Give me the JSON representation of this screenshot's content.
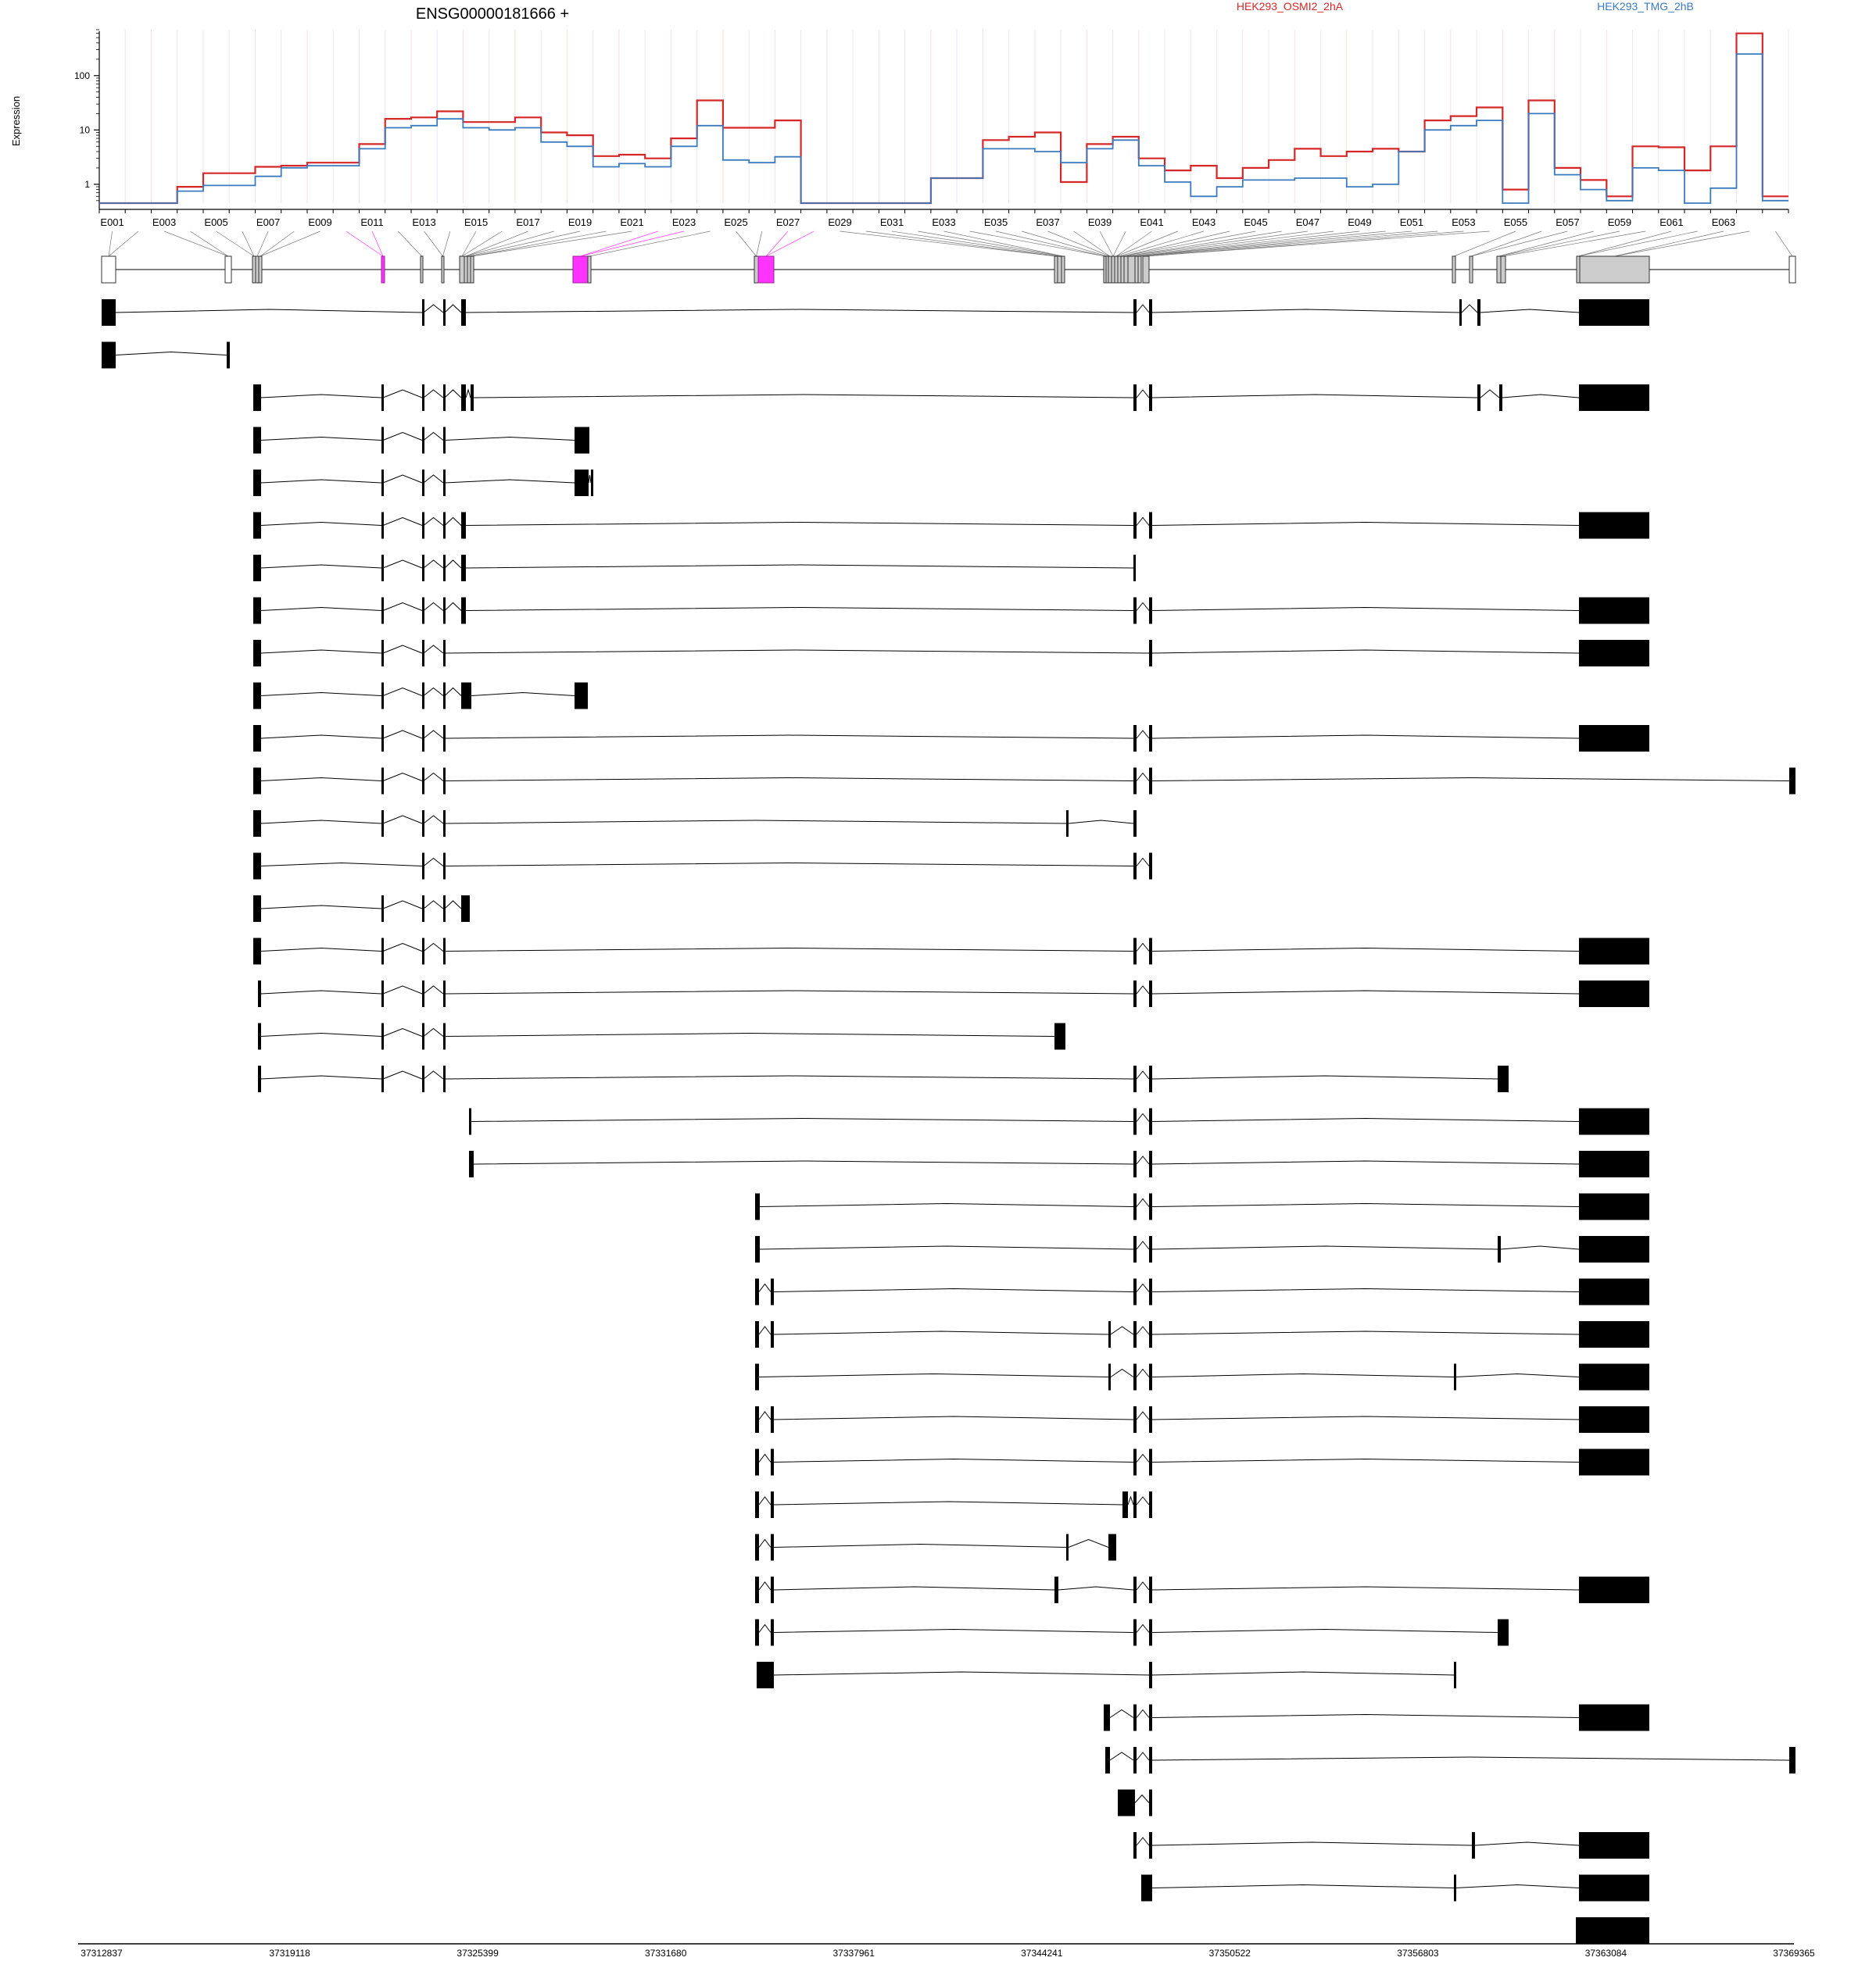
{
  "chart_data": {
    "type": "line",
    "title": "ENSG00000181666 +",
    "ylabel": "Expression",
    "y_scale": "log",
    "ylim": [
      0.45,
      700
    ],
    "y_ticks": [
      {
        "label": "1",
        "value": 1
      },
      {
        "label": "10",
        "value": 10
      },
      {
        "label": "100",
        "value": 100
      }
    ],
    "exon_labels": [
      "E001",
      "E003",
      "E005",
      "E007",
      "E009",
      "E011",
      "E013",
      "E015",
      "E017",
      "E019",
      "E021",
      "E023",
      "E025",
      "E027",
      "E029",
      "E031",
      "E033",
      "E035",
      "E037",
      "E039",
      "E041",
      "E043",
      "E045",
      "E047",
      "E049",
      "E051",
      "E053",
      "E055",
      "E057",
      "E059",
      "E061",
      "E063"
    ],
    "series": [
      {
        "name": "HEK293_OSMI2_2hA",
        "color": "#d62728",
        "values": [
          0.45,
          0.45,
          0.45,
          0.9,
          1.6,
          1.6,
          2.1,
          2.2,
          2.5,
          2.5,
          5.5,
          16,
          17,
          22,
          14,
          14,
          17,
          9,
          8,
          3.3,
          3.5,
          3,
          7,
          35,
          11,
          11,
          15,
          0.45,
          0.45,
          0.45,
          0.45,
          0.45,
          1.3,
          1.3,
          6.5,
          7.5,
          9,
          1.1,
          5.5,
          7.5,
          3,
          1.8,
          2.2,
          1.3,
          2,
          2.8,
          4.5,
          3.3,
          4,
          4.5,
          4,
          15,
          18,
          26,
          0.8,
          35,
          2,
          1.2,
          0.6,
          5,
          4.8,
          1.8,
          5,
          600,
          0.6
        ]
      },
      {
        "name": "HEK293_TMG_2hB",
        "color": "#3a7bbf",
        "values": [
          0.45,
          0.45,
          0.45,
          0.75,
          0.95,
          0.95,
          1.4,
          2,
          2.2,
          2.2,
          4.5,
          11,
          12,
          16,
          11,
          10,
          11,
          6,
          5,
          2.1,
          2.4,
          2.1,
          5,
          12,
          2.8,
          2.5,
          3.2,
          0.45,
          0.45,
          0.45,
          0.45,
          0.45,
          1.3,
          1.3,
          4.5,
          4.5,
          4,
          2.5,
          4.5,
          6.5,
          2.2,
          1.1,
          0.6,
          0.9,
          1.2,
          1.2,
          1.3,
          1.3,
          0.9,
          1,
          4,
          10,
          12,
          15,
          0.45,
          20,
          1.5,
          0.8,
          0.5,
          2,
          1.8,
          0.45,
          0.85,
          250,
          0.5
        ]
      }
    ],
    "legend": [
      "HEK293_OSMI2_2hA",
      "HEK293_TMG_2hB"
    ],
    "highlight_color": "#ff33ff",
    "genomic_axis": {
      "range": [
        37312837,
        37369365
      ],
      "ticks": [
        "37312837",
        "37319118",
        "37325399",
        "37331680",
        "37337961",
        "37344241",
        "37350522",
        "37356803",
        "37363084",
        "37369365"
      ]
    }
  }
}
